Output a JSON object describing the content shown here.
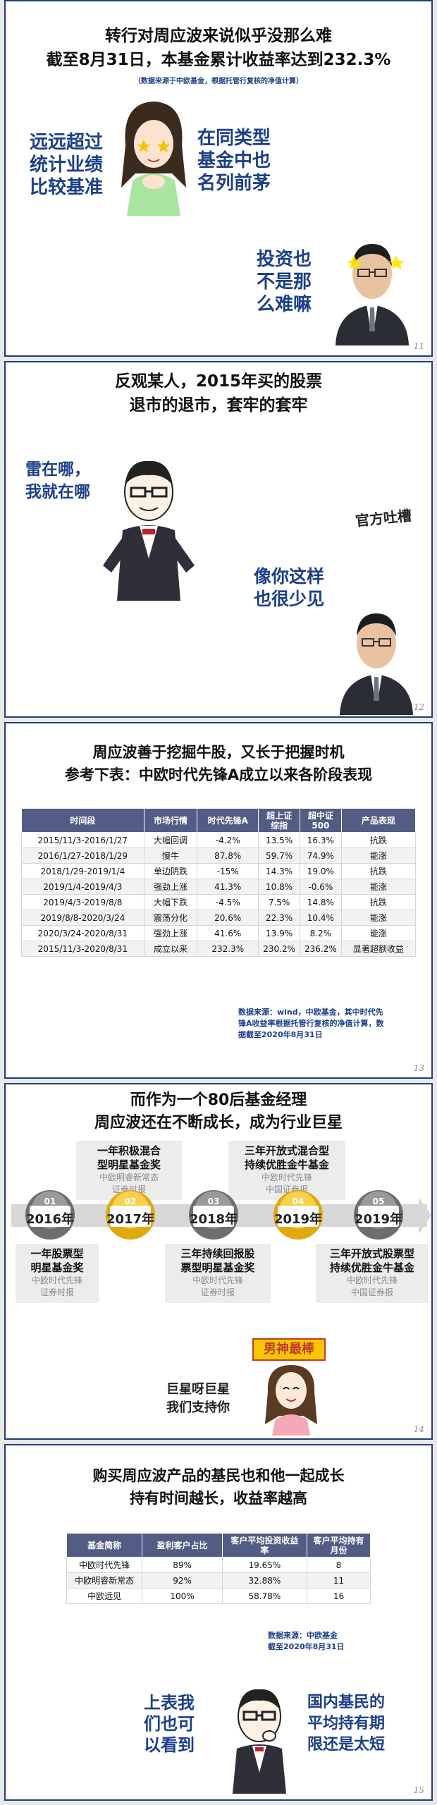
{
  "slide11": {
    "title1": "转行对周应波来说似乎没那么难",
    "title2": "截至8月31日，本基金累计收益率达到232.3%",
    "note": "（数据来源于中欧基金，根据托管行复核的净值计算）",
    "left_text": [
      "远远超过",
      "统计业绩",
      "比较基准"
    ],
    "right_text": [
      "在同类型",
      "基金中也",
      "名列前茅"
    ],
    "bottom_text": [
      "投资也",
      "不是那",
      "么难嘛"
    ],
    "page": "11"
  },
  "slide12": {
    "title1": "反观某人，2015年买的股票",
    "title2": "退市的退市，套牢的套牢",
    "left_text": [
      "雷在哪，",
      "我就在哪"
    ],
    "tag": "官方吐槽",
    "right_text": [
      "像你这样",
      "也很少见"
    ],
    "page": "12"
  },
  "slide13": {
    "title1": "周应波善于挖掘牛股，又长于把握时机",
    "title2": "参考下表：中欧时代先锋A成立以来各阶段表现",
    "headers": [
      "时间段",
      "市场行情",
      "时代先锋A",
      "超上证综指",
      "超中证500",
      "产品表现"
    ],
    "rows": [
      [
        "2015/11/3-2016/1/27",
        "大幅回调",
        "-4.2%",
        "13.5%",
        "16.3%",
        "抗跌"
      ],
      [
        "2016/1/27-2018/1/29",
        "慢牛",
        "87.8%",
        "59.7%",
        "74.9%",
        "能涨"
      ],
      [
        "2018/1/29-2019/1/4",
        "单边阴跌",
        "-15%",
        "14.3%",
        "19.0%",
        "抗跌"
      ],
      [
        "2019/1/4-2019/4/3",
        "强劲上涨",
        "41.3%",
        "10.8%",
        "-0.6%",
        "能涨"
      ],
      [
        "2019/4/3-2019/8/8",
        "大幅下跌",
        "-4.5%",
        "7.5%",
        "14.8%",
        "抗跌"
      ],
      [
        "2019/8/8-2020/3/24",
        "震荡分化",
        "20.6%",
        "22.3%",
        "10.4%",
        "能涨"
      ],
      [
        "2020/3/24-2020/8/31",
        "强劲上涨",
        "41.6%",
        "13.9%",
        "8.2%",
        "能涨"
      ],
      [
        "2015/11/3-2020/8/31",
        "成立以来",
        "232.3%",
        "230.2%",
        "236.2%",
        "显著超额收益"
      ]
    ],
    "source": [
      "数据来源：wind，中欧基金，其中时代先",
      "锋A收益率根据托管行复核的净值计算，数",
      "据截至2020年8月31日"
    ],
    "page": "13"
  },
  "slide14": {
    "title1": "而作为一个80后基金经理",
    "title2": "周应波还在不断成长，成为行业巨星",
    "nodes": [
      {
        "num": "01",
        "year": "2016年"
      },
      {
        "num": "02",
        "year": "2017年"
      },
      {
        "num": "03",
        "year": "2018年"
      },
      {
        "num": "04",
        "year": "2019年"
      },
      {
        "num": "05",
        "year": "2019年"
      }
    ],
    "awards_top": [
      {
        "t": [
          "一年积极混合",
          "型明星基金奖"
        ],
        "s": [
          "中欧明睿新常态",
          "证券时报"
        ]
      },
      {
        "t": [
          "三年开放式混合型",
          "持续优胜金牛基金"
        ],
        "s": [
          "中欧时代先锋",
          "中国证券报"
        ]
      }
    ],
    "awards_bottom": [
      {
        "t": [
          "一年股票型",
          "明星基金奖"
        ],
        "s": [
          "中欧时代先锋",
          "证券时报"
        ]
      },
      {
        "t": [
          "三年持续回报股",
          "票型明星基金奖"
        ],
        "s": [
          "中欧时代先锋",
          "证券时报"
        ]
      },
      {
        "t": [
          "三年开放式股票型",
          "持续优胜金牛基金"
        ],
        "s": [
          "中欧时代先锋",
          "中国证券报"
        ]
      }
    ],
    "sign": "男神最棒",
    "hand_text": [
      "巨星呀巨星",
      "我们支持你"
    ],
    "page": "14"
  },
  "slide15": {
    "title1": "购买周应波产品的基民也和他一起成长",
    "title2": "持有时间越长，收益率越高",
    "headers": [
      "基金简称",
      "盈利客户占比",
      "客户平均投资收益率",
      "客户平均持有月份"
    ],
    "rows": [
      [
        "中欧时代先锋",
        "89%",
        "19.65%",
        "8"
      ],
      [
        "中欧明睿新常态",
        "92%",
        "32.88%",
        "11"
      ],
      [
        "中欧远见",
        "100%",
        "58.78%",
        "16"
      ]
    ],
    "source": [
      "数据来源：中欧基金",
      "截至2020年8月31日"
    ],
    "left_text": [
      "上表我",
      "们也可",
      "以看到"
    ],
    "right_text": [
      "国内基民的",
      "平均持有期",
      "限还是太短"
    ],
    "page": "15"
  },
  "colors": {
    "accent_blue": "#1d3f8a",
    "table_header": "#535c84",
    "gold": "#e0a90f"
  }
}
